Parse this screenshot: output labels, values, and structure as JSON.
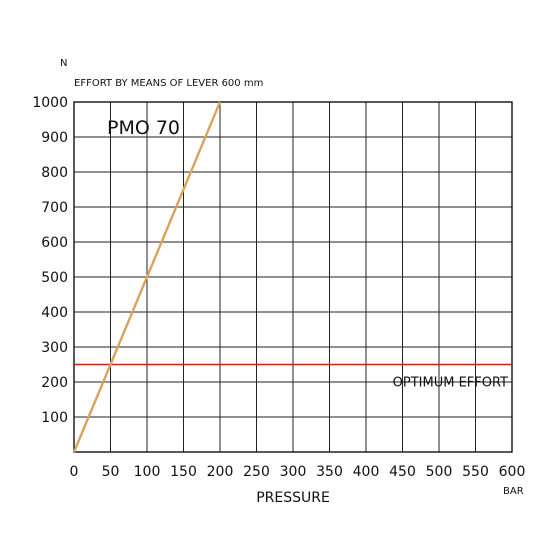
{
  "chart_data": {
    "type": "line",
    "title": "PMO 70",
    "y_unit": "N",
    "ylabel": "EFFORT BY MEANS OF LEVER 600 mm",
    "xlabel": "PRESSURE",
    "x_unit": "BAR",
    "xlim": [
      0,
      600
    ],
    "ylim": [
      0,
      1000
    ],
    "xticks": [
      0,
      50,
      100,
      150,
      200,
      250,
      300,
      350,
      400,
      450,
      500,
      550,
      600
    ],
    "yticks": [
      100,
      200,
      300,
      400,
      500,
      600,
      700,
      800,
      900,
      1000
    ],
    "grid": true,
    "series": [
      {
        "name": "PMO 70",
        "color": "#d9a45a",
        "points": [
          [
            0,
            0
          ],
          [
            200,
            1000
          ]
        ]
      }
    ],
    "reference_lines": [
      {
        "label": "OPTIMUM EFFORT",
        "y": 250,
        "color": "#cc1f1f"
      }
    ]
  }
}
